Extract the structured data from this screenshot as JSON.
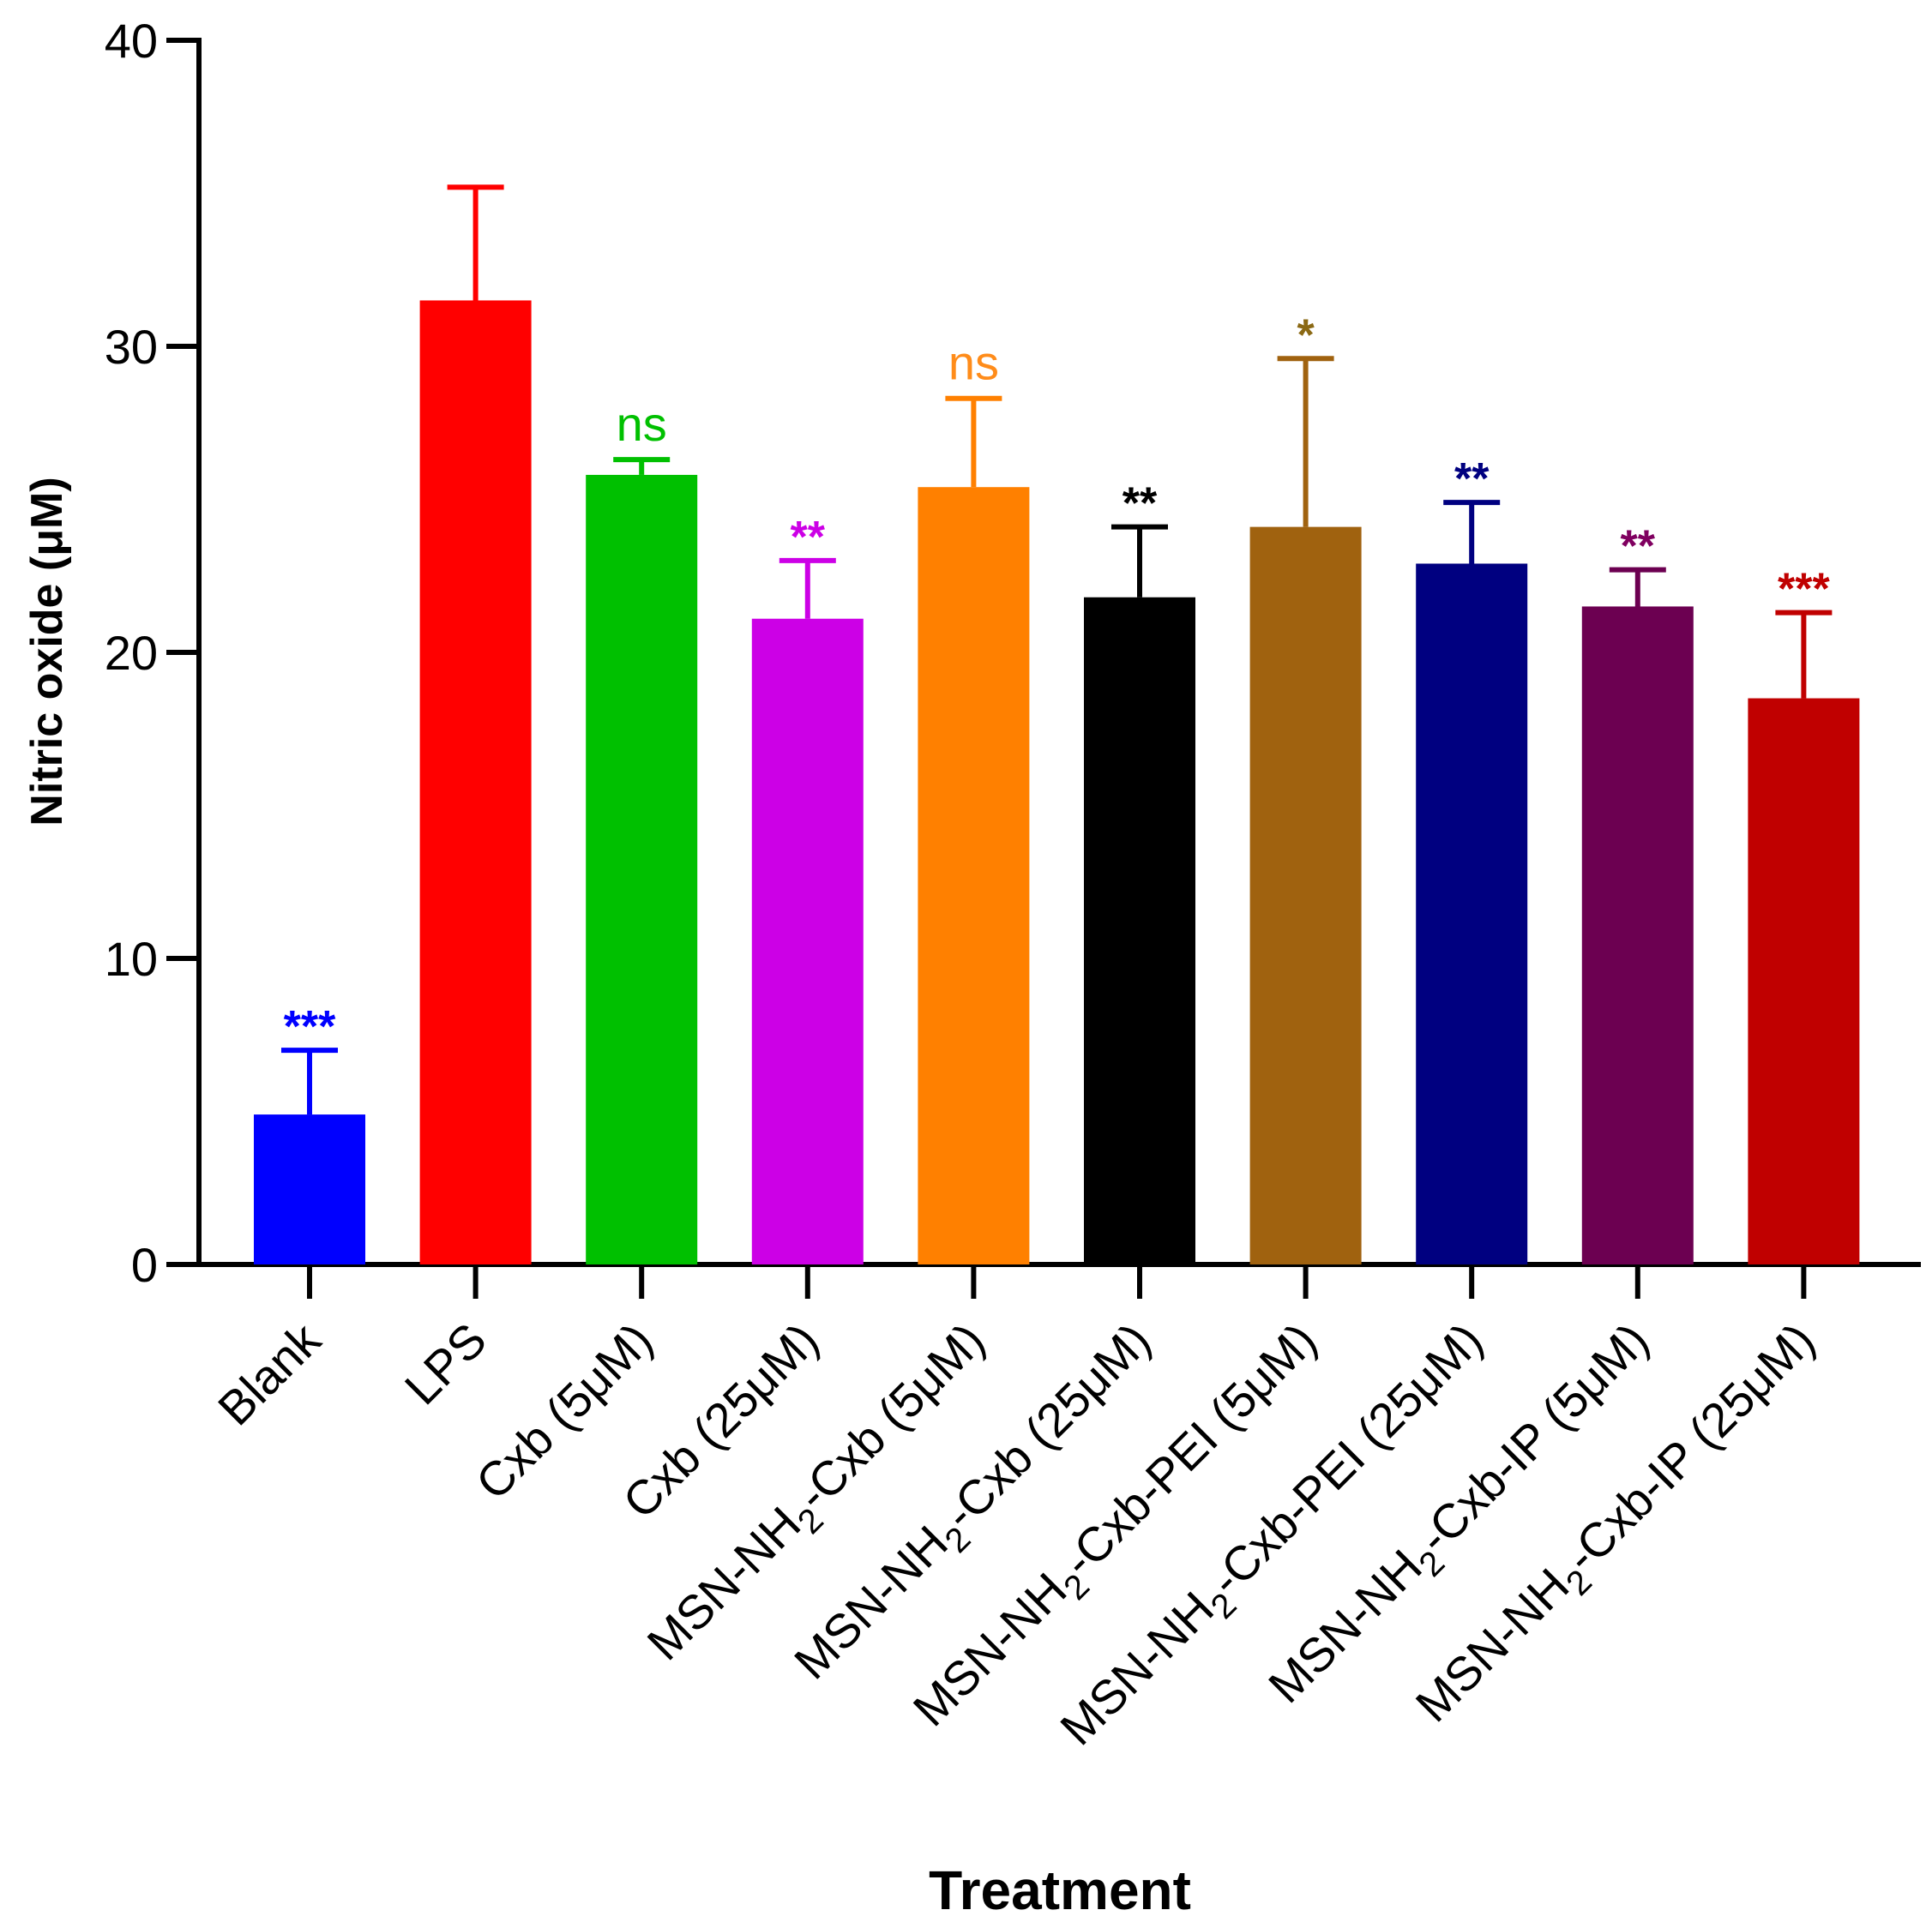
{
  "chart_data": {
    "type": "bar",
    "xlabel": "Treatment",
    "ylabel": "Nitric oxide (μM)",
    "ylim": [
      0,
      40
    ],
    "yticks": [
      "0",
      "10",
      "20",
      "30",
      "40"
    ],
    "grid": false,
    "categories": [
      {
        "main": "Blank",
        "sub": "",
        "rest": ""
      },
      {
        "main": "LPS",
        "sub": "",
        "rest": ""
      },
      {
        "main": "Cxb (5μM)",
        "sub": "",
        "rest": ""
      },
      {
        "main": "Cxb (25μM)",
        "sub": "",
        "rest": ""
      },
      {
        "main": "MSN-NH",
        "sub": "2",
        "rest": "-Cxb (5μM)"
      },
      {
        "main": "MSN-NH",
        "sub": "2",
        "rest": "-Cxb (25μM)"
      },
      {
        "main": "MSN-NH",
        "sub": "2",
        "rest": "-Cxb-PEI (5μM)"
      },
      {
        "main": "MSN-NH",
        "sub": "2",
        "rest": "-Cxb-PEI (25μM)"
      },
      {
        "main": "MSN-NH",
        "sub": "2",
        "rest": "-Cxb-IP (5μM)"
      },
      {
        "main": "MSN-NH",
        "sub": "2",
        "rest": "-Cxb-IP (25μM)"
      }
    ],
    "values": [
      4.9,
      31.5,
      25.8,
      21.1,
      25.4,
      21.8,
      24.1,
      22.9,
      21.5,
      18.5
    ],
    "errors": [
      2.1,
      3.7,
      0.5,
      1.9,
      2.9,
      2.3,
      5.5,
      2.0,
      1.2,
      2.8
    ],
    "colors": [
      "#0000ff",
      "#ff0000",
      "#00c000",
      "#cc00e6",
      "#ff8000",
      "#000000",
      "#a0620f",
      "#000080",
      "#6c0051",
      "#c00000"
    ],
    "significance": [
      "***",
      "",
      "ns",
      "**",
      "ns",
      "**",
      "*",
      "**",
      "**",
      "***"
    ],
    "significance_colors": [
      "#0000ff",
      "",
      "#00c000",
      "#cc00e6",
      "#ff8c1a",
      "#000000",
      "#8b6914",
      "#000080",
      "#800060",
      "#c00000"
    ]
  }
}
